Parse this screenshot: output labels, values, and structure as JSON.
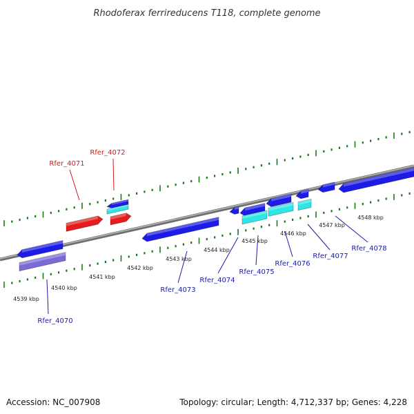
{
  "title": "Rhodoferax ferrireducens T118, complete genome",
  "footer": {
    "accession": "Accession: NC_007908",
    "summary": "Topology: circular; Length: 4,712,337 bp; Genes: 4,228"
  },
  "colors": {
    "backbone": "#8c8c8c",
    "tick": "#1a7a1a",
    "forward_gene": "#1c1ce6",
    "reverse_gene": "#e61c1c",
    "rna_gene": "#2ee6e6",
    "pseudo_gene": "#7a6ad6",
    "blue_label": "#1a1aa8",
    "red_label": "#d11a1a"
  },
  "scale_ticks": [
    {
      "label": "4539 kbp"
    },
    {
      "label": "4540 kbp"
    },
    {
      "label": "4541 kbp"
    },
    {
      "label": "4542 kbp"
    },
    {
      "label": "4543 kbp"
    },
    {
      "label": "4544 kbp"
    },
    {
      "label": "4545 kbp"
    },
    {
      "label": "4546 kbp"
    },
    {
      "label": "4547 kbp"
    },
    {
      "label": "4548 kbp"
    }
  ],
  "gene_labels": [
    {
      "text": "Rfer_4070"
    },
    {
      "text": "Rfer_4071"
    },
    {
      "text": "Rfer_4072"
    },
    {
      "text": "Rfer_4073"
    },
    {
      "text": "Rfer_4074"
    },
    {
      "text": "Rfer_4075"
    },
    {
      "text": "Rfer_4076"
    },
    {
      "text": "Rfer_4077"
    },
    {
      "text": "Rfer_4078"
    }
  ]
}
